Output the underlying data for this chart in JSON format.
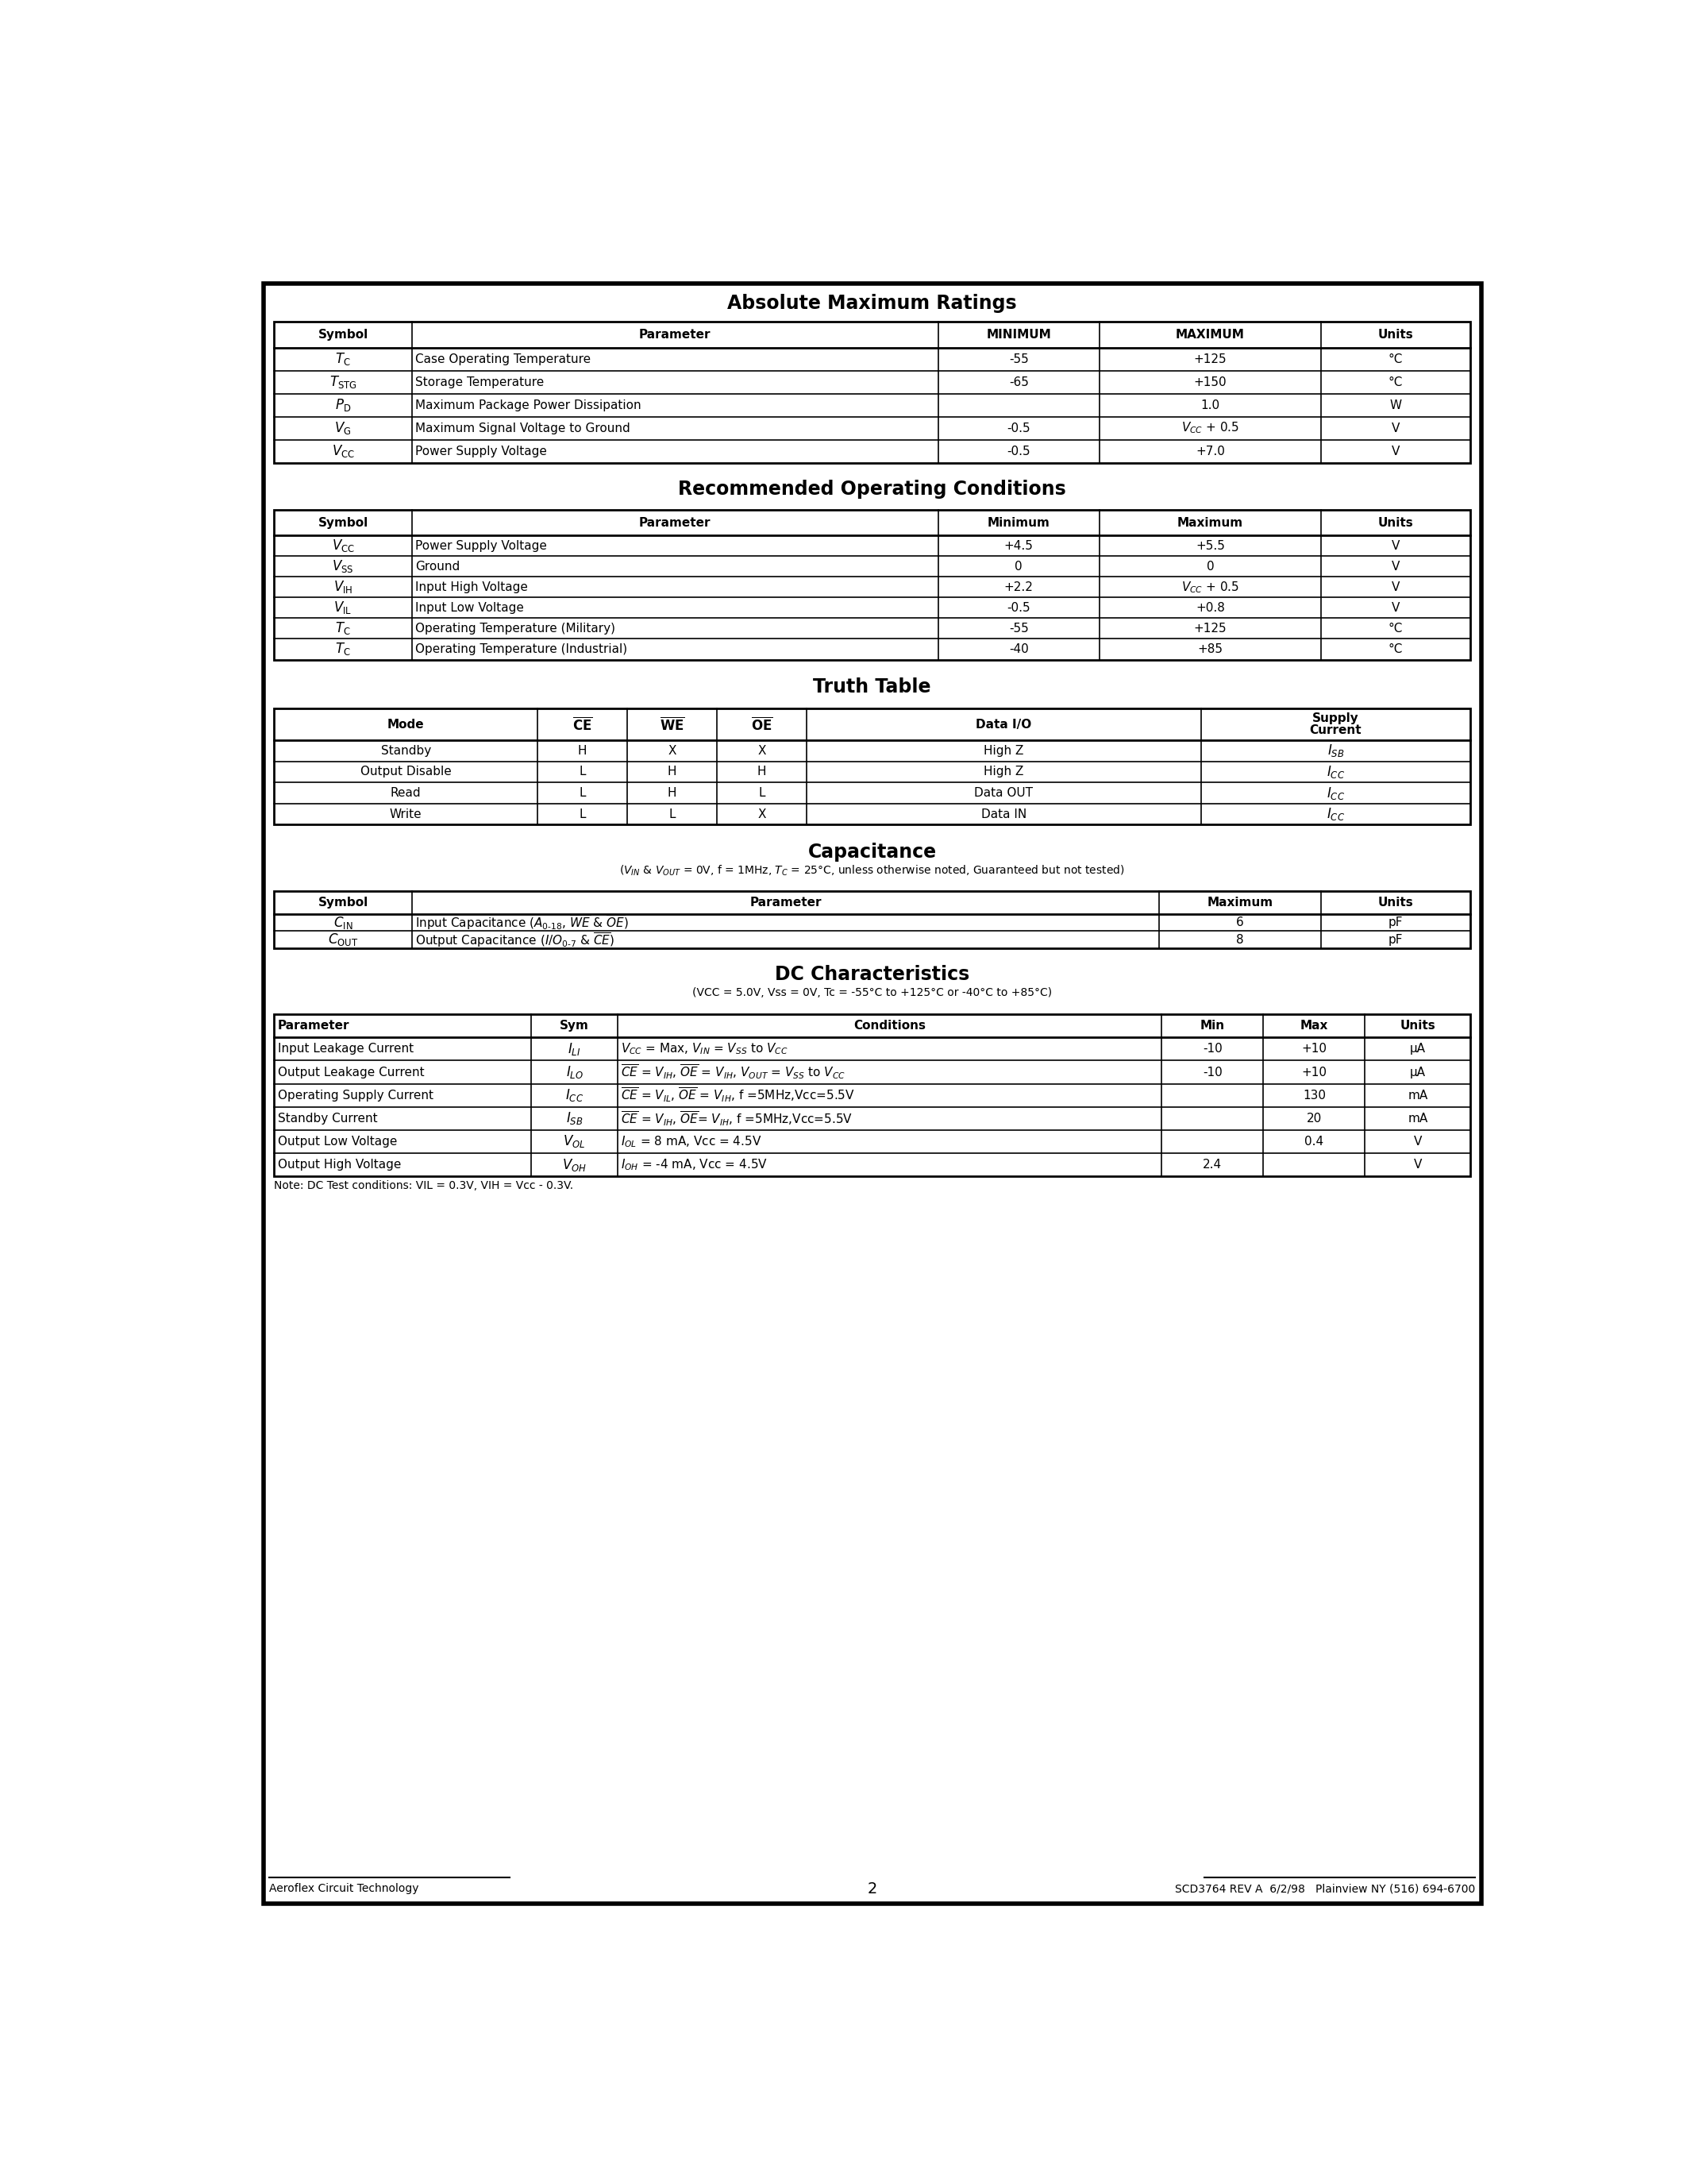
{
  "page_bg": "#ffffff",
  "section1_title": "Absolute Maximum Ratings",
  "abs_max_headers": [
    "Symbol",
    "Parameter",
    "MINIMUM",
    "MAXIMUM",
    "Units"
  ],
  "abs_max_rows": [
    [
      "T_C",
      "Case Operating Temperature",
      "-55",
      "+125",
      "°C"
    ],
    [
      "T_STG",
      "Storage Temperature",
      "-65",
      "+150",
      "°C"
    ],
    [
      "P_D",
      "Maximum Package Power Dissipation",
      "",
      "1.0",
      "W"
    ],
    [
      "V_G",
      "Maximum Signal Voltage to Ground",
      "-0.5",
      "V_CC + 0.5",
      "V"
    ],
    [
      "V_CC",
      "Power Supply Voltage",
      "-0.5",
      "+7.0",
      "V"
    ]
  ],
  "section2_title": "Recommended Operating Conditions",
  "rec_op_headers": [
    "Symbol",
    "Parameter",
    "Minimum",
    "Maximum",
    "Units"
  ],
  "rec_op_rows": [
    [
      "V_CC",
      "Power Supply Voltage",
      "+4.5",
      "+5.5",
      "V"
    ],
    [
      "V_SS",
      "Ground",
      "0",
      "0",
      "V"
    ],
    [
      "V_IH",
      "Input High Voltage",
      "+2.2",
      "V_CC + 0.5",
      "V"
    ],
    [
      "V_IL",
      "Input Low Voltage",
      "-0.5",
      "+0.8",
      "V"
    ],
    [
      "T_C",
      "Operating Temperature (Military)",
      "-55",
      "+125",
      "°C"
    ],
    [
      "T_C",
      "Operating Temperature (Industrial)",
      "-40",
      "+85",
      "°C"
    ]
  ],
  "section3_title": "Truth Table",
  "truth_rows": [
    [
      "Standby",
      "H",
      "X",
      "X",
      "High Z",
      "I_SB"
    ],
    [
      "Output Disable",
      "L",
      "H",
      "H",
      "High Z",
      "I_CC"
    ],
    [
      "Read",
      "L",
      "H",
      "L",
      "Data OUT",
      "I_CC"
    ],
    [
      "Write",
      "L",
      "L",
      "X",
      "Data IN",
      "I_CC"
    ]
  ],
  "section4_title": "Capacitance",
  "cap_subtitle": "(V_IN & V_OUT = 0V, f = 1MHz, T_C = 25°C, unless otherwise noted, Guaranteed but not tested)",
  "cap_headers": [
    "Symbol",
    "Parameter",
    "Maximum",
    "Units"
  ],
  "cap_rows": [
    [
      "C_IN",
      "Input Capacitance (A_0-18, WE_bar & OE_bar)",
      "6",
      "pF"
    ],
    [
      "C_OUT",
      "Output Capacitance (I/O_0-7 & CE_bar)",
      "8",
      "pF"
    ]
  ],
  "section5_title": "DC Characteristics",
  "dc_subtitle": "(VCC = 5.0V, Vss = 0V, Tc = -55°C to +125°C or -40°C to +85°C)",
  "dc_headers": [
    "Parameter",
    "Sym",
    "Conditions",
    "Min",
    "Max",
    "Units"
  ],
  "dc_rows": [
    [
      "Input Leakage Current",
      "I_LI",
      "V_CC = Max, V_IN = V_SS to V_CC",
      "-10",
      "+10",
      "μA"
    ],
    [
      "Output Leakage Current",
      "I_LO",
      "CE_bar = V_IH, OE_bar = V_IH, V_OUT = V_SS to V_CC",
      "-10",
      "+10",
      "μA"
    ],
    [
      "Operating Supply Current",
      "I_CC",
      "CE_bar = V_IL, OE_bar = V_IH, f =5MHz,Vcc=5.5V",
      "",
      "130",
      "mA"
    ],
    [
      "Standby Current",
      "I_SB",
      "CE_bar = V_IH, OE_bar= V_IH, f =5MHz,Vcc=5.5V",
      "",
      "20",
      "mA"
    ],
    [
      "Output Low Voltage",
      "V_OL",
      "I_OL = 8 mA, Vcc = 4.5V",
      "",
      "0.4",
      "V"
    ],
    [
      "Output High Voltage",
      "V_OH",
      "I_OH = -4 mA, Vcc = 4.5V",
      "2.4",
      "",
      "V"
    ]
  ],
  "dc_note": "Note: DC Test conditions: VIL = 0.3V, VIH = Vcc - 0.3V.",
  "footer_left": "Aeroflex Circuit Technology",
  "footer_center": "2",
  "footer_right": "SCD3764 REV A  6/2/98   Plainview NY (516) 694-6700",
  "outer_lw": 4.0,
  "table_lw": 2.0,
  "inner_lw": 1.2,
  "title_fontsize": 17,
  "header_fontsize": 11,
  "body_fontsize": 11,
  "symbol_fontsize": 12,
  "footer_fontsize": 10
}
